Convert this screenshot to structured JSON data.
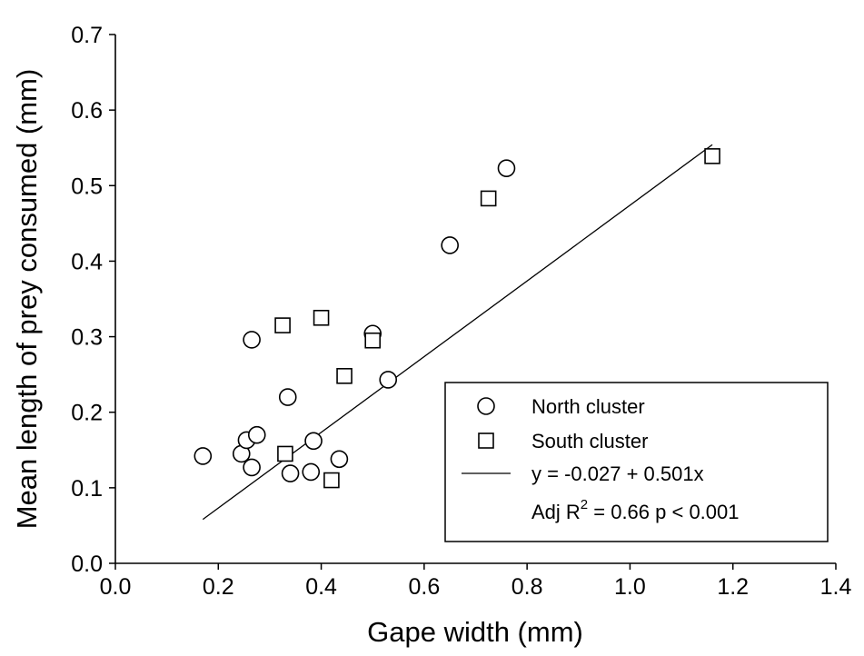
{
  "chart_data": {
    "type": "scatter",
    "xlabel": "Gape width (mm)",
    "ylabel": "Mean length of prey consumed (mm)",
    "xlim": [
      0.0,
      1.4
    ],
    "ylim": [
      0.0,
      0.7
    ],
    "xticks": [
      "0.0",
      "0.2",
      "0.4",
      "0.6",
      "0.8",
      "1.0",
      "1.2",
      "1.4"
    ],
    "yticks": [
      "0.0",
      "0.1",
      "0.2",
      "0.3",
      "0.4",
      "0.5",
      "0.6",
      "0.7"
    ],
    "grid": false,
    "legend_position": "bottom-right",
    "series": [
      {
        "name": "North cluster",
        "marker": "circle",
        "points": [
          [
            0.17,
            0.142
          ],
          [
            0.245,
            0.145
          ],
          [
            0.255,
            0.163
          ],
          [
            0.265,
            0.127
          ],
          [
            0.265,
            0.296
          ],
          [
            0.275,
            0.17
          ],
          [
            0.335,
            0.22
          ],
          [
            0.34,
            0.119
          ],
          [
            0.38,
            0.121
          ],
          [
            0.385,
            0.162
          ],
          [
            0.435,
            0.138
          ],
          [
            0.5,
            0.304
          ],
          [
            0.53,
            0.243
          ],
          [
            0.65,
            0.421
          ],
          [
            0.76,
            0.523
          ]
        ]
      },
      {
        "name": "South cluster",
        "marker": "square",
        "points": [
          [
            0.325,
            0.315
          ],
          [
            0.33,
            0.145
          ],
          [
            0.4,
            0.325
          ],
          [
            0.42,
            0.11
          ],
          [
            0.445,
            0.248
          ],
          [
            0.5,
            0.295
          ],
          [
            0.725,
            0.483
          ],
          [
            1.16,
            0.539
          ]
        ]
      }
    ],
    "regression": {
      "intercept": -0.027,
      "slope": 0.501,
      "x_range": [
        0.17,
        1.16
      ],
      "label": "y = -0.027 + 0.501x",
      "stats_prefix": "Adj R",
      "stats_superscript": "2",
      "stats_suffix": " = 0.66  p < 0.001"
    }
  }
}
